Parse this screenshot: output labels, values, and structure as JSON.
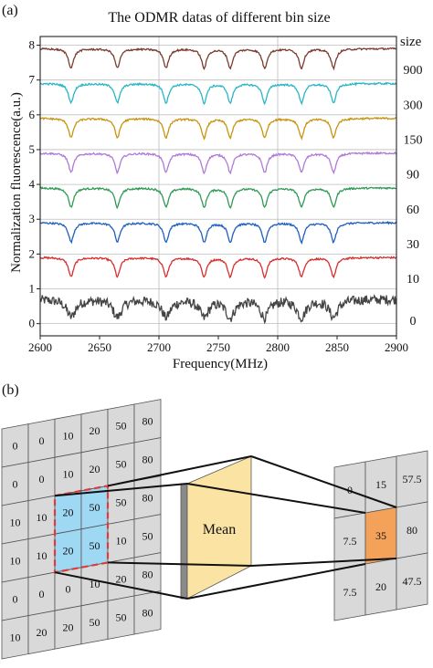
{
  "panel_labels": {
    "a": "(a)",
    "b": "(b)"
  },
  "chart_data": {
    "type": "line",
    "title": "The ODMR datas of different bin size",
    "xlabel": "Frequency(MHz)",
    "ylabel": "Normalization fluorescence(a.u.)",
    "xlim": [
      2600,
      2900
    ],
    "ylim": [
      -0.35,
      8.25
    ],
    "x_ticks": [
      "2600",
      "2650",
      "2700",
      "2750",
      "2800",
      "2850",
      "2900"
    ],
    "y_ticks": [
      "0",
      "1",
      "2",
      "3",
      "4",
      "5",
      "6",
      "7",
      "8"
    ],
    "right_axis_label": "size",
    "grid": {
      "horizontal": true,
      "vertical_at_x": [
        2700,
        2800
      ]
    },
    "dips": [
      2626,
      2665,
      2706,
      2738,
      2760,
      2789,
      2820,
      2847
    ],
    "series": [
      {
        "size": "0",
        "baseline": 0.7,
        "color": "#444444",
        "noisy": true
      },
      {
        "size": "10",
        "baseline": 1.9,
        "color": "#d62f2f"
      },
      {
        "size": "30",
        "baseline": 2.9,
        "color": "#1f5fbf"
      },
      {
        "size": "60",
        "baseline": 3.9,
        "color": "#2f9a54"
      },
      {
        "size": "90",
        "baseline": 4.9,
        "color": "#b07ad6"
      },
      {
        "size": "150",
        "baseline": 5.9,
        "color": "#c8930f"
      },
      {
        "size": "300",
        "baseline": 6.9,
        "color": "#29b6c6"
      },
      {
        "size": "900",
        "baseline": 7.9,
        "color": "#7a3b2e"
      }
    ]
  },
  "diagram": {
    "input_grid": [
      [
        "0",
        "0",
        "10",
        "20",
        "50",
        "80"
      ],
      [
        "0",
        "0",
        "10",
        "20",
        "50",
        "80"
      ],
      [
        "10",
        "10",
        "20",
        "50",
        "50",
        "80"
      ],
      [
        "10",
        "10",
        "20",
        "50",
        "10",
        "50"
      ],
      [
        "0",
        "0",
        "0",
        "10",
        "20",
        "80"
      ],
      [
        "10",
        "20",
        "20",
        "50",
        "50",
        "80"
      ]
    ],
    "mean_label": "Mean",
    "output_grid": [
      [
        "0",
        "15",
        "57.5"
      ],
      [
        "7.5",
        "35",
        "80"
      ],
      [
        "7.5",
        "20",
        "47.5"
      ]
    ],
    "colors": {
      "cell": "#d9d9d9",
      "highlight": "#9fd8f2",
      "center": "#f4a15a",
      "mean": "#fbe3a3",
      "dash": "#e03a3a"
    }
  }
}
